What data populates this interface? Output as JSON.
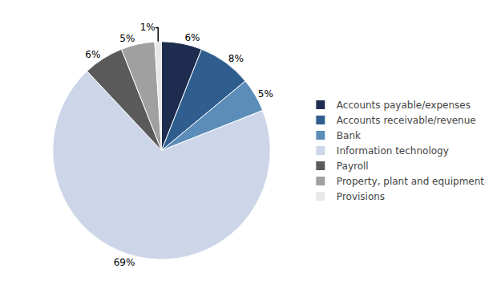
{
  "chart_data": {
    "type": "pie",
    "categories": [
      "Accounts payable/expenses",
      "Accounts receivable/revenue",
      "Bank",
      "Information technology",
      "Payroll",
      "Property, plant and equipment",
      "Provisions"
    ],
    "values": [
      6,
      8,
      5,
      69,
      6,
      5,
      1
    ],
    "value_labels": [
      "6%",
      "8%",
      "5%",
      "69%",
      "6%",
      "5%",
      "1%"
    ],
    "colors": [
      "#1e2d4f",
      "#2e5d8e",
      "#5b8db8",
      "#cdd6e8",
      "#5a5a5a",
      "#a0a0a0",
      "#e8e8e8"
    ],
    "data_labels": true,
    "legend": "right"
  }
}
